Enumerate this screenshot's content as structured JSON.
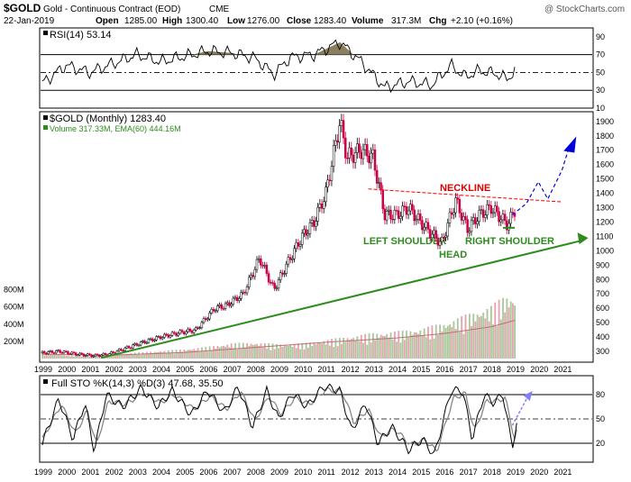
{
  "header": {
    "symbol": "$GOLD",
    "name": "Gold - Continuous Contract (EOD)",
    "exchange": "CME",
    "date": "22-Jan-2019",
    "open_label": "Open",
    "open": "1285.00",
    "high_label": "High",
    "high": "1300.40",
    "low_label": "Low",
    "low": "1276.00",
    "close_label": "Close",
    "close": "1283.40",
    "volume_label": "Volume",
    "volume": "317.3M",
    "chg_label": "Chg",
    "chg": "+2.10 (+0.16%)",
    "watermark": "@ StockCharts.com"
  },
  "colors": {
    "bull": "#000000",
    "bear": "#cc0044",
    "trend": "#2e8b1e",
    "neckline": "#ff0000",
    "arrow": "#0000dd",
    "rsi_fill": "#8a8060",
    "volume_bar": "#a8c89a",
    "volume_bar_red": "#e8a0b0",
    "volume_ema": "#c07070"
  },
  "chart_data": [
    {
      "type": "line",
      "title": "RSI(14) 53.14",
      "indicator": "RSI(14)",
      "last": 53.14,
      "ylim": [
        10,
        100
      ],
      "y_ticks": [
        "10",
        "30",
        "50",
        "70",
        "90"
      ],
      "reference_lines": [
        30,
        50,
        70
      ],
      "x": [
        1999.0,
        2000.0,
        2001.0,
        2002.0,
        2003.0,
        2004.0,
        2005.0,
        2006.0,
        2007.0,
        2008.0,
        2008.8,
        2009.5,
        2010.5,
        2011.6,
        2012.5,
        2013.5,
        2014.5,
        2015.5,
        2016.3,
        2016.9,
        2017.5,
        2018.3,
        2018.7,
        2019.0
      ],
      "values": [
        38,
        58,
        50,
        60,
        70,
        62,
        68,
        74,
        72,
        66,
        48,
        67,
        70,
        84,
        62,
        33,
        40,
        36,
        58,
        45,
        52,
        48,
        42,
        53
      ]
    },
    {
      "type": "line",
      "title": "$GOLD (Monthly) 1283.40",
      "subtitle": "Volume 317.33M, EMA(60) 444.16M",
      "ylim": [
        200,
        1950
      ],
      "y_ticks": [
        "300",
        "400",
        "500",
        "600",
        "700",
        "800",
        "900",
        "1000",
        "1100",
        "1200",
        "1300",
        "1400",
        "1500",
        "1600",
        "1700",
        "1800",
        "1900"
      ],
      "volume_ticks": [
        "200M",
        "400M",
        "600M",
        "800M"
      ],
      "x_ticks": [
        "1999",
        "2000",
        "2001",
        "2002",
        "2003",
        "2004",
        "2005",
        "2006",
        "2007",
        "2008",
        "2009",
        "2010",
        "2011",
        "2012",
        "2013",
        "2014",
        "2015",
        "2016",
        "2017",
        "2018",
        "2019",
        "2020",
        "2021"
      ],
      "x": [
        1999.0,
        1999.7,
        2000.5,
        2001.2,
        2001.8,
        2002.5,
        2003.2,
        2004.0,
        2004.8,
        2005.5,
        2006.3,
        2006.8,
        2007.5,
        2008.2,
        2008.8,
        2009.5,
        2010.0,
        2010.5,
        2011.0,
        2011.6,
        2011.9,
        2012.5,
        2013.0,
        2013.5,
        2014.0,
        2014.5,
        2015.0,
        2015.9,
        2016.5,
        2017.0,
        2017.5,
        2018.0,
        2018.7,
        2019.0
      ],
      "values": [
        290,
        300,
        280,
        270,
        280,
        320,
        360,
        400,
        430,
        450,
        600,
        620,
        700,
        950,
        730,
        950,
        1100,
        1200,
        1400,
        1900,
        1650,
        1700,
        1650,
        1250,
        1250,
        1300,
        1200,
        1050,
        1350,
        1150,
        1250,
        1300,
        1180,
        1283
      ],
      "volume_x": [
        1999,
        2000,
        2001,
        2002,
        2003,
        2004,
        2005,
        2006,
        2007,
        2008,
        2009,
        2010,
        2011,
        2012,
        2013,
        2014,
        2015,
        2016,
        2017,
        2018,
        2018.6
      ],
      "volume_m": [
        70,
        40,
        30,
        50,
        70,
        90,
        110,
        140,
        180,
        190,
        170,
        180,
        220,
        260,
        300,
        320,
        350,
        420,
        520,
        620,
        740
      ],
      "volume_ema_x": [
        1999,
        2002,
        2005,
        2008,
        2011,
        2014,
        2016,
        2018,
        2019
      ],
      "volume_ema_m": [
        50,
        40,
        70,
        130,
        190,
        240,
        290,
        370,
        444
      ],
      "annotations": [
        {
          "text": "NECKLINE",
          "color": "red"
        },
        {
          "text": "LEFT SHOULDER",
          "color": "green"
        },
        {
          "text": "HEAD",
          "color": "green"
        },
        {
          "text": "RIGHT SHOULDER",
          "color": "green"
        }
      ],
      "neckline": {
        "x": [
          2012.8,
          2021.0
        ],
        "y": [
          1430,
          1340
        ]
      },
      "trendline": {
        "x": [
          2001.5,
          2022.0
        ],
        "y": [
          255,
          1070
        ]
      },
      "right_shoulder_line": {
        "x": [
          2018.5,
          2019.0
        ],
        "y": [
          1160,
          1160
        ]
      },
      "projection": {
        "x": [
          2018.9,
          2019.5,
          2020.0,
          2020.4,
          2021.0,
          2021.3
        ],
        "y": [
          1250,
          1330,
          1480,
          1360,
          1560,
          1720
        ]
      }
    },
    {
      "type": "line",
      "title": "Full STO %K(14,3) %D(3) 47.68, 35.50",
      "ylim": [
        0,
        100
      ],
      "y_ticks": [
        "20",
        "50",
        "80"
      ],
      "reference_lines": [
        20,
        50,
        80
      ],
      "k_x": [
        1999.0,
        1999.7,
        2000.3,
        2000.8,
        2001.2,
        2001.7,
        2002.4,
        2003.2,
        2003.9,
        2004.5,
        2005.3,
        2006.0,
        2006.7,
        2007.3,
        2007.9,
        2008.5,
        2009.0,
        2009.6,
        2010.2,
        2010.9,
        2011.6,
        2012.1,
        2012.7,
        2013.2,
        2013.8,
        2014.5,
        2015.1,
        2015.6,
        2016.3,
        2016.8,
        2017.2,
        2017.7,
        2018.1,
        2018.5,
        2018.9,
        2019.1
      ],
      "k_values": [
        20,
        75,
        25,
        70,
        10,
        80,
        65,
        88,
        65,
        85,
        55,
        85,
        58,
        90,
        40,
        85,
        50,
        82,
        65,
        90,
        85,
        35,
        70,
        20,
        40,
        12,
        25,
        5,
        85,
        85,
        25,
        80,
        70,
        80,
        15,
        48
      ],
      "d_x": [
        1999.0,
        1999.8,
        2000.4,
        2000.9,
        2001.3,
        2001.8,
        2002.5,
        2003.3,
        2004.0,
        2004.6,
        2005.4,
        2006.1,
        2006.8,
        2007.4,
        2008.0,
        2008.6,
        2009.1,
        2009.7,
        2010.3,
        2011.0,
        2011.7,
        2012.2,
        2012.8,
        2013.3,
        2013.9,
        2014.6,
        2015.2,
        2015.7,
        2016.4,
        2016.9,
        2017.3,
        2017.8,
        2018.2,
        2018.6,
        2019.0,
        2019.1
      ],
      "d_values": [
        25,
        68,
        32,
        60,
        18,
        72,
        68,
        82,
        70,
        80,
        62,
        78,
        62,
        84,
        48,
        78,
        56,
        76,
        68,
        86,
        84,
        45,
        62,
        28,
        38,
        18,
        24,
        10,
        75,
        82,
        35,
        72,
        72,
        76,
        25,
        36
      ],
      "projection": {
        "x": [
          2018.9,
          2019.6
        ],
        "y": [
          42,
          80
        ]
      },
      "x_ticks": [
        "1999",
        "2000",
        "2001",
        "2002",
        "2003",
        "2004",
        "2005",
        "2006",
        "2007",
        "2008",
        "2009",
        "2010",
        "2011",
        "2012",
        "2013",
        "2014",
        "2015",
        "2016",
        "2017",
        "2018",
        "2019",
        "2020",
        "2021"
      ]
    }
  ]
}
